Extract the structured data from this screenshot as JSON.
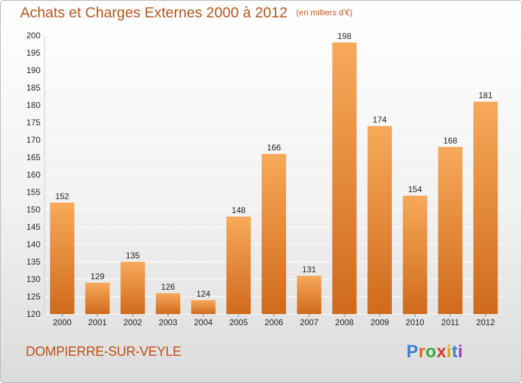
{
  "header": {
    "title": "Achats et Charges Externes 2000 à 2012",
    "unit": "(en milliers d'€)"
  },
  "footer": {
    "commune": "DOMPIERRE-SUR-VEYLE",
    "logo_text": "Proxiti",
    "logo_colors": [
      "#3a7fd0",
      "#e0671a",
      "#3aa83a",
      "#d23b2f",
      "#e0a21a",
      "#3a7fd0",
      "#8a3fbf"
    ]
  },
  "colors": {
    "bar_top": "#f7a95a",
    "bar_bottom": "#d06a1c",
    "title": "#b5561c",
    "grid": "#ffffff",
    "axis_text": "#222222"
  },
  "chart_data": {
    "type": "bar",
    "categories": [
      "2000",
      "2001",
      "2002",
      "2003",
      "2004",
      "2005",
      "2006",
      "2007",
      "2008",
      "2009",
      "2010",
      "2011",
      "2012"
    ],
    "values": [
      152,
      129,
      135,
      126,
      124,
      148,
      166,
      131,
      198,
      174,
      154,
      168,
      181
    ],
    "ylim": [
      120,
      200
    ],
    "yticks": [
      120,
      125,
      130,
      135,
      140,
      145,
      150,
      155,
      160,
      165,
      170,
      175,
      180,
      185,
      190,
      195,
      200
    ],
    "grid": true,
    "data_labels": true
  }
}
